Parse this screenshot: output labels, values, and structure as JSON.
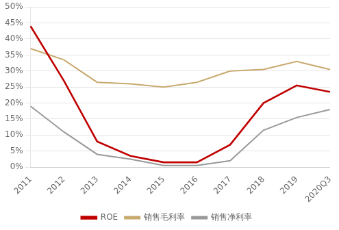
{
  "chart_data": {
    "type": "line",
    "categories": [
      "2011",
      "2012",
      "2013",
      "2014",
      "2015",
      "2016",
      "2017",
      "2018",
      "2019",
      "2020Q3"
    ],
    "series": [
      {
        "name": "ROE",
        "color": "#c00000",
        "values": [
          0.44,
          0.27,
          0.08,
          0.035,
          0.015,
          0.015,
          0.07,
          0.2,
          0.255,
          0.235
        ]
      },
      {
        "name": "销售毛利率",
        "color": "#c8a96e",
        "values": [
          0.37,
          0.335,
          0.265,
          0.26,
          0.25,
          0.265,
          0.3,
          0.305,
          0.33,
          0.305
        ]
      },
      {
        "name": "销售净利率",
        "color": "#999999",
        "values": [
          0.19,
          0.11,
          0.04,
          0.025,
          0.005,
          0.005,
          0.02,
          0.115,
          0.155,
          0.18
        ]
      }
    ],
    "ylim": [
      0,
      0.5
    ],
    "yticks": [
      {
        "value": 0,
        "label": "0%"
      },
      {
        "value": 0.05,
        "label": "5%"
      },
      {
        "value": 0.1,
        "label": "10%"
      },
      {
        "value": 0.15,
        "label": "15%"
      },
      {
        "value": 0.2,
        "label": "20%"
      },
      {
        "value": 0.25,
        "label": "25%"
      },
      {
        "value": 0.3,
        "label": "30%"
      },
      {
        "value": 0.35,
        "label": "35%"
      },
      {
        "value": 0.4,
        "label": "40%"
      },
      {
        "value": 0.45,
        "label": "45%"
      },
      {
        "value": 0.5,
        "label": "50%"
      }
    ],
    "grid": "y",
    "legend": "bottom"
  }
}
